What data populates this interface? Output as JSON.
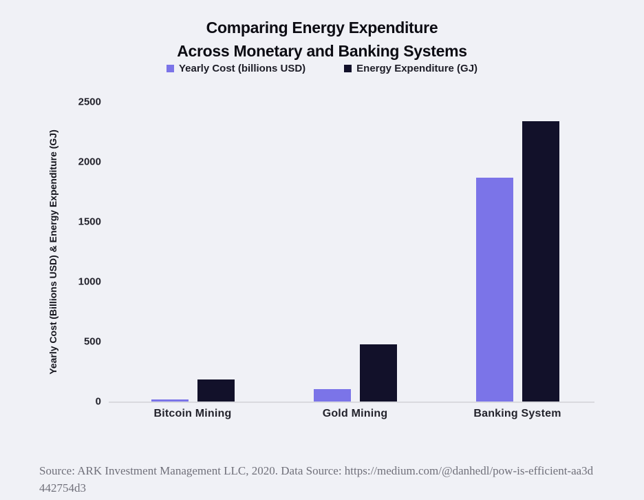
{
  "title": {
    "line1": "Comparing Energy Expenditure",
    "line2": "Across Monetary and Banking Systems"
  },
  "legend": [
    {
      "label": "Yearly Cost (billions USD)",
      "color": "#7b74e8"
    },
    {
      "label": "Energy Expenditure (GJ)",
      "color": "#12112a"
    }
  ],
  "chart_data": {
    "type": "bar",
    "title": "Comparing Energy Expenditure Across Monetary and Banking Systems",
    "categories": [
      "Bitcoin Mining",
      "Gold Mining",
      "Banking System"
    ],
    "series": [
      {
        "name": "Yearly Cost (billions USD)",
        "color": "#7b74e8",
        "values": [
          4.5,
          105,
          1870
        ]
      },
      {
        "name": "Energy Expenditure (GJ)",
        "color": "#12112a",
        "values": [
          184,
          475,
          2340
        ]
      }
    ],
    "ylabel": "Yearly Cost (Billions USD) & Energy Expenditure (GJ)",
    "xlabel": "",
    "yticks": [
      0,
      500,
      1000,
      1500,
      2000,
      2500
    ],
    "ylim": [
      0,
      2500
    ],
    "grid": false,
    "legend_position": "top"
  },
  "footer": {
    "source_text": "Source: ARK Investment Management LLC, 2020. Data Source: https://medium.com/@danhedl/pow-is-efficient-aa3d442754d3"
  }
}
